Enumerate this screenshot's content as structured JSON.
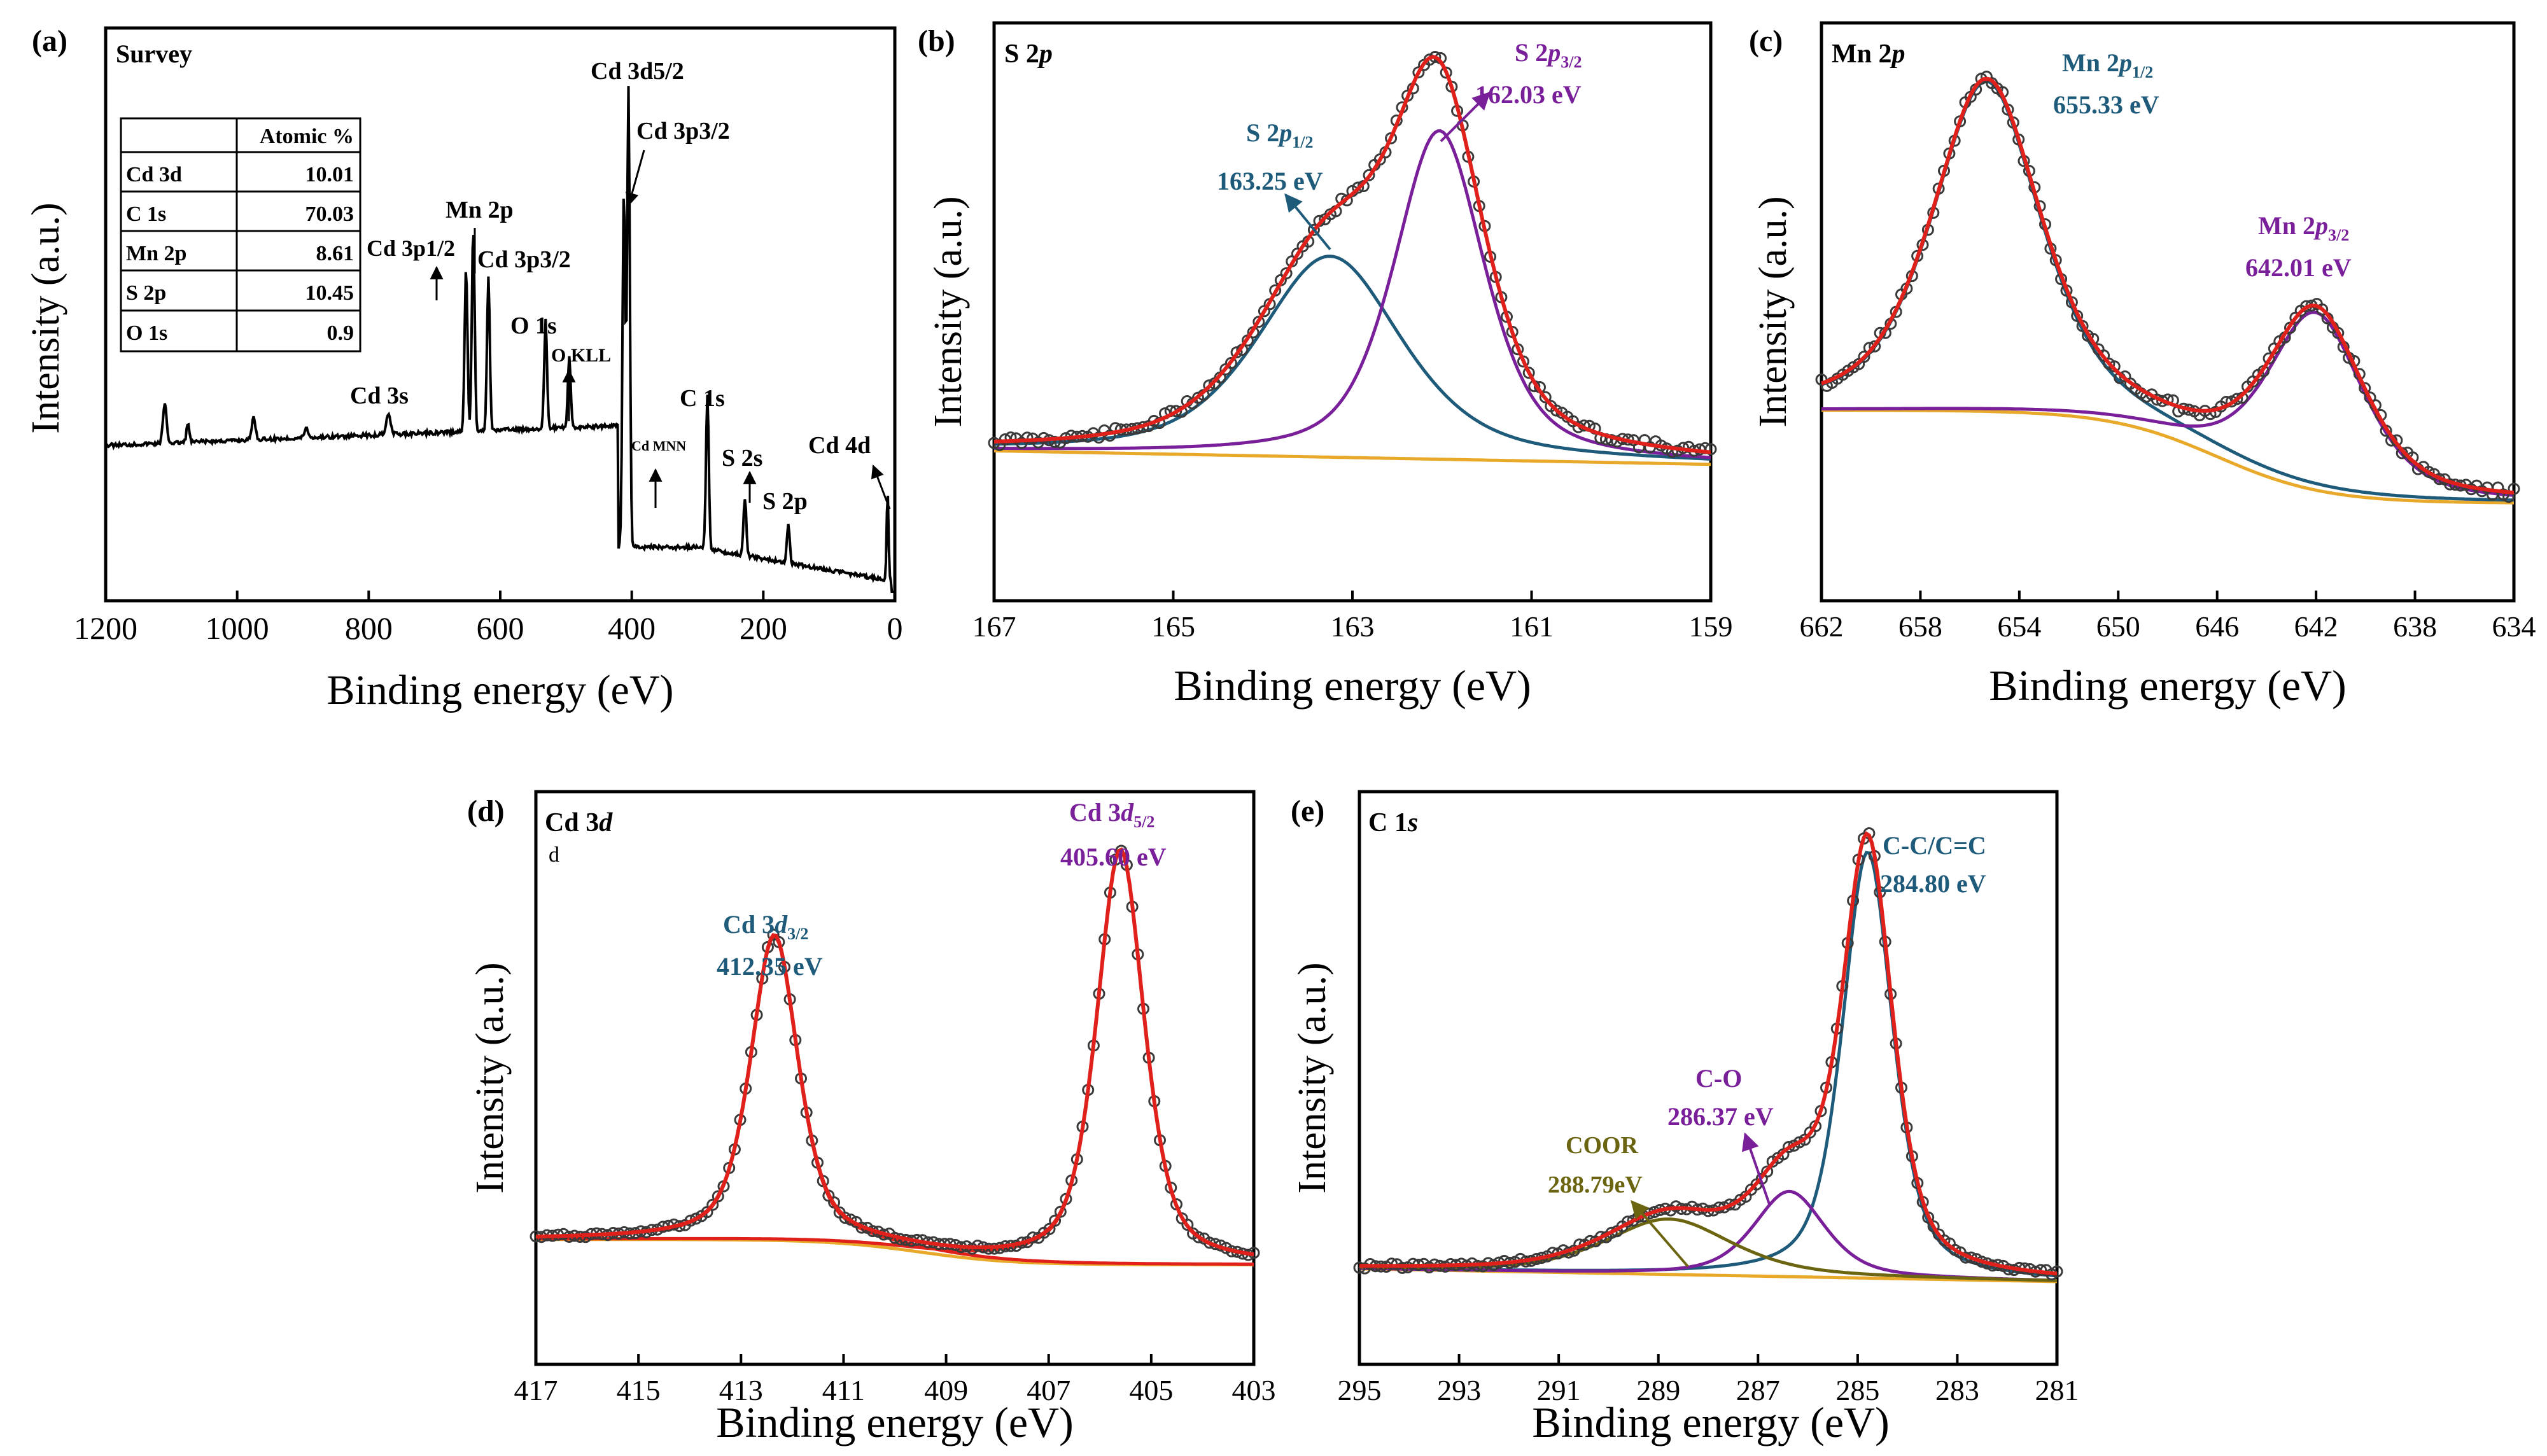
{
  "colors": {
    "data_points": "#3a3a3a",
    "envelope": "#e0201b",
    "background": "#e8a92a",
    "blue": "#1e5a7a",
    "purple": "#7a1f9a",
    "olive": "#6b6512",
    "survey": "#000000"
  },
  "chart_data": [
    {
      "panel": "(a)",
      "type": "line",
      "title": "Survey",
      "xlabel": "Binding energy (eV)",
      "ylabel": "Intensity (a.u.)",
      "xlim": [
        1200,
        0
      ],
      "xticks": [
        "1200",
        "1000",
        "800",
        "600",
        "400",
        "200",
        "0"
      ],
      "peak_labels": [
        "Cd 3d5/2",
        "Cd 3p3/2",
        "Mn 2p",
        "Cd 3p1/2",
        "Cd 3p3/2",
        "O 1s",
        "O KLL",
        "Cd 3s",
        "Cd MNN",
        "C 1s",
        "S 2s",
        "S 2p",
        "Cd 4d"
      ],
      "table": {
        "header": [
          "",
          "Atomic %"
        ],
        "rows": [
          [
            "Cd 3d",
            "10.01"
          ],
          [
            "C 1s",
            "70.03"
          ],
          [
            "Mn 2p",
            "8.61"
          ],
          [
            "S 2p",
            "10.45"
          ],
          [
            "O 1s",
            "0.9"
          ]
        ]
      }
    },
    {
      "panel": "(b)",
      "type": "line",
      "title": "S 2p",
      "xlabel": "Binding energy (eV)",
      "ylabel": "Intensity (a.u.)",
      "xlim": [
        167,
        159
      ],
      "xticks": [
        "167",
        "165",
        "163",
        "161",
        "159"
      ],
      "components": [
        {
          "name": "S 2p1/2",
          "center": 163.25,
          "label": "163.25 eV"
        },
        {
          "name": "S 2p3/2",
          "center": 162.03,
          "label": "162.03 eV"
        }
      ]
    },
    {
      "panel": "(c)",
      "type": "line",
      "title": "Mn 2p",
      "xlabel": "Binding energy (eV)",
      "ylabel": "Intensity (a.u.)",
      "xlim": [
        662,
        634
      ],
      "xticks": [
        "662",
        "658",
        "654",
        "650",
        "646",
        "642",
        "638",
        "634"
      ],
      "components": [
        {
          "name": "Mn 2p1/2",
          "center": 655.33,
          "label": "655.33 eV"
        },
        {
          "name": "Mn 2p3/2",
          "center": 642.01,
          "label": "642.01 eV"
        }
      ]
    },
    {
      "panel": "(d)",
      "type": "line",
      "title": "Cd 3d",
      "subtitle": "d",
      "xlabel": "Binding energy (eV)",
      "ylabel": "Intensity (a.u.)",
      "xlim": [
        417,
        403
      ],
      "xticks": [
        "417",
        "415",
        "413",
        "411",
        "409",
        "407",
        "405",
        "403"
      ],
      "components": [
        {
          "name": "Cd 3d3/2",
          "center": 412.35,
          "label": "412.35 eV"
        },
        {
          "name": "Cd 3d5/2",
          "center": 405.6,
          "label": "405.60 eV"
        }
      ]
    },
    {
      "panel": "(e)",
      "type": "line",
      "title": "C 1s",
      "xlabel": "Binding energy (eV)",
      "ylabel": "Intensity (a.u.)",
      "xlim": [
        295,
        281
      ],
      "xticks": [
        "295",
        "293",
        "291",
        "289",
        "287",
        "285",
        "283",
        "281"
      ],
      "components": [
        {
          "name": "C-C/C=C",
          "center": 284.8,
          "label": "284.80 eV"
        },
        {
          "name": "C-O",
          "center": 286.37,
          "label": "286.37 eV"
        },
        {
          "name": "COOR",
          "center": 288.79,
          "label": "288.79eV"
        }
      ]
    }
  ]
}
